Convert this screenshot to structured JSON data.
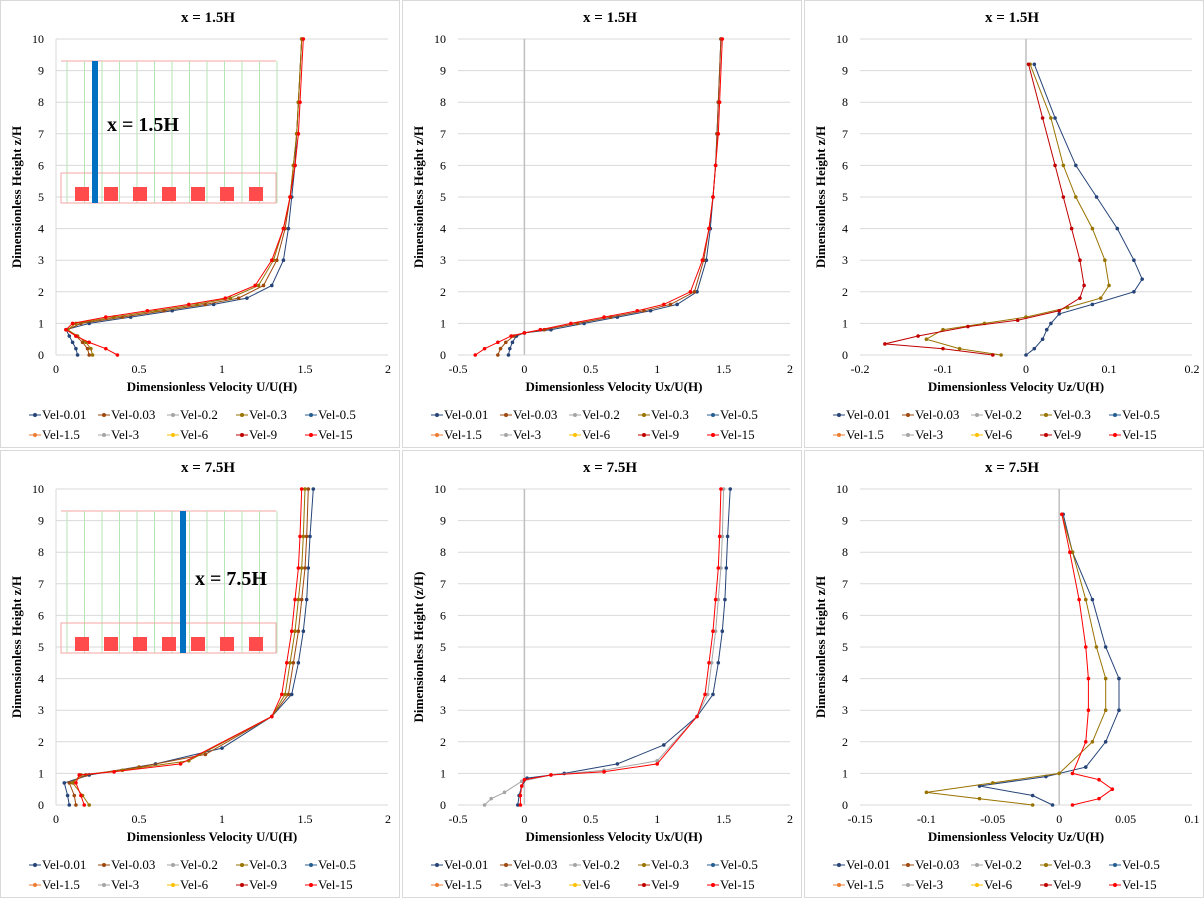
{
  "series_names": [
    "Vel-0.01",
    "Vel-0.03",
    "Vel-0.2",
    "Vel-0.3",
    "Vel-0.5",
    "Vel-1.5",
    "Vel-3",
    "Vel-6",
    "Vel-9",
    "Vel-15"
  ],
  "series_colors": [
    "#264478",
    "#9e480e",
    "#a5a5a5",
    "#997300",
    "#255e91",
    "#ed7d31",
    "#a5a5a5",
    "#ffc000",
    "#c00000",
    "#ff0000"
  ],
  "inset_colors": {
    "column": "#0070c0",
    "block": "#ff4b4b",
    "vline": "#b5e6b5",
    "box": "#f4a6a6"
  },
  "chart_data": [
    {
      "type": "line",
      "panel": "r0c0",
      "title": "x = 1.5H",
      "xlabel": "Dimensionless Velocity U/U(H)",
      "ylabel": "Dimensionless Height z/H",
      "xlim": [
        0,
        2
      ],
      "ylim": [
        0,
        10
      ],
      "xticks": [
        "0",
        "0.5",
        "1",
        "1.5",
        "2"
      ],
      "yticks": [
        "0",
        "1",
        "2",
        "3",
        "4",
        "5",
        "6",
        "7",
        "8",
        "9",
        "10"
      ],
      "inset_label": "x = 1.5H",
      "series": [
        {
          "name": "Vel-0.01",
          "x": [
            0.13,
            0.12,
            0.1,
            0.08,
            0.06,
            0.2,
            0.45,
            0.7,
            0.95,
            1.15,
            1.3,
            1.37,
            1.4,
            1.42,
            1.44,
            1.45,
            1.46,
            1.48
          ],
          "y": [
            0,
            0.2,
            0.4,
            0.6,
            0.8,
            1.0,
            1.2,
            1.4,
            1.6,
            1.8,
            2.2,
            3,
            4,
            5,
            6,
            7,
            8,
            10
          ]
        },
        {
          "name": "Vel-0.03",
          "x": [
            0.2,
            0.19,
            0.16,
            0.12,
            0.07,
            0.15,
            0.4,
            0.65,
            0.9,
            1.1,
            1.25,
            1.33,
            1.38,
            1.41,
            1.43,
            1.45,
            1.46,
            1.48
          ],
          "y": [
            0,
            0.2,
            0.4,
            0.6,
            0.8,
            1.0,
            1.2,
            1.4,
            1.6,
            1.8,
            2.2,
            3,
            4,
            5,
            6,
            7,
            8,
            10
          ]
        },
        {
          "name": "Vel-0.3",
          "x": [
            0.22,
            0.21,
            0.18,
            0.13,
            0.07,
            0.12,
            0.35,
            0.6,
            0.85,
            1.05,
            1.22,
            1.31,
            1.37,
            1.41,
            1.43,
            1.45,
            1.46,
            1.48
          ],
          "y": [
            0,
            0.2,
            0.4,
            0.6,
            0.8,
            1.0,
            1.2,
            1.4,
            1.6,
            1.8,
            2.2,
            3,
            4,
            5,
            6,
            7,
            8,
            10
          ]
        },
        {
          "name": "Vel-15",
          "x": [
            0.37,
            0.3,
            0.2,
            0.12,
            0.06,
            0.1,
            0.3,
            0.55,
            0.8,
            1.02,
            1.2,
            1.3,
            1.37,
            1.41,
            1.44,
            1.46,
            1.47,
            1.49
          ],
          "y": [
            0,
            0.2,
            0.4,
            0.6,
            0.8,
            1.0,
            1.2,
            1.4,
            1.6,
            1.8,
            2.2,
            3,
            4,
            5,
            6,
            7,
            8,
            10
          ]
        }
      ]
    },
    {
      "type": "line",
      "panel": "r0c1",
      "title": "x = 1.5H",
      "xlabel": "Dimensionless Velocity Ux/U(H)",
      "ylabel": "Dimensionless Height z/H",
      "xlim": [
        -0.5,
        2
      ],
      "ylim": [
        0,
        10
      ],
      "xticks": [
        "-0.5",
        "0",
        "0.5",
        "1",
        "1.5",
        "2"
      ],
      "yticks": [
        "0",
        "1",
        "2",
        "3",
        "4",
        "5",
        "6",
        "7",
        "8",
        "9",
        "10"
      ],
      "series": [
        {
          "name": "Vel-0.01",
          "x": [
            -0.12,
            -0.11,
            -0.09,
            -0.06,
            0.0,
            0.2,
            0.45,
            0.7,
            0.95,
            1.15,
            1.3,
            1.37,
            1.4,
            1.42,
            1.44,
            1.45,
            1.46,
            1.48
          ],
          "y": [
            0,
            0.2,
            0.4,
            0.6,
            0.7,
            0.8,
            1.0,
            1.2,
            1.4,
            1.6,
            2.0,
            3,
            4,
            5,
            6,
            7,
            8,
            10
          ]
        },
        {
          "name": "Vel-0.03",
          "x": [
            -0.2,
            -0.18,
            -0.14,
            -0.08,
            0.0,
            0.15,
            0.4,
            0.65,
            0.9,
            1.1,
            1.28,
            1.35,
            1.39,
            1.42,
            1.44,
            1.45,
            1.46,
            1.48
          ],
          "y": [
            0,
            0.2,
            0.4,
            0.6,
            0.7,
            0.8,
            1.0,
            1.2,
            1.4,
            1.6,
            2.0,
            3,
            4,
            5,
            6,
            7,
            8,
            10
          ]
        },
        {
          "name": "Vel-15",
          "x": [
            -0.37,
            -0.3,
            -0.2,
            -0.1,
            0.0,
            0.12,
            0.35,
            0.6,
            0.85,
            1.05,
            1.25,
            1.34,
            1.39,
            1.42,
            1.44,
            1.46,
            1.47,
            1.49
          ],
          "y": [
            0,
            0.2,
            0.4,
            0.6,
            0.7,
            0.8,
            1.0,
            1.2,
            1.4,
            1.6,
            2.0,
            3,
            4,
            5,
            6,
            7,
            8,
            10
          ]
        }
      ]
    },
    {
      "type": "line",
      "panel": "r0c2",
      "title": "x = 1.5H",
      "xlabel": "Dimensionless Velocity Uz/U(H)",
      "ylabel": "Dimensionless Height z/H",
      "xlim": [
        -0.2,
        0.2
      ],
      "ylim": [
        0,
        10
      ],
      "xticks": [
        "-0.2",
        "-0.1",
        "0",
        "0.1",
        "0.2"
      ],
      "yticks": [
        "0",
        "1",
        "2",
        "3",
        "4",
        "5",
        "6",
        "7",
        "8",
        "9",
        "10"
      ],
      "series": [
        {
          "name": "Vel-0.01",
          "x": [
            0.0,
            0.01,
            0.02,
            0.025,
            0.03,
            0.04,
            0.08,
            0.13,
            0.14,
            0.13,
            0.11,
            0.085,
            0.06,
            0.035,
            0.01
          ],
          "y": [
            0,
            0.2,
            0.5,
            0.8,
            1.0,
            1.3,
            1.6,
            2.0,
            2.4,
            3.0,
            4.0,
            5.0,
            6.0,
            7.5,
            9.2
          ]
        },
        {
          "name": "Vel-0.3",
          "x": [
            -0.03,
            -0.08,
            -0.12,
            -0.1,
            -0.05,
            0.0,
            0.05,
            0.09,
            0.1,
            0.095,
            0.08,
            0.06,
            0.045,
            0.03,
            0.005
          ],
          "y": [
            0,
            0.2,
            0.5,
            0.8,
            1.0,
            1.2,
            1.5,
            1.8,
            2.2,
            3.0,
            4.0,
            5.0,
            6.0,
            7.5,
            9.2
          ]
        },
        {
          "name": "Vel-9",
          "x": [
            -0.04,
            -0.1,
            -0.17,
            -0.13,
            -0.07,
            -0.01,
            0.04,
            0.065,
            0.07,
            0.065,
            0.055,
            0.045,
            0.035,
            0.02,
            0.003
          ],
          "y": [
            0,
            0.2,
            0.35,
            0.6,
            0.9,
            1.1,
            1.4,
            1.8,
            2.2,
            3.0,
            4.0,
            5.0,
            6.0,
            7.5,
            9.2
          ]
        }
      ]
    },
    {
      "type": "line",
      "panel": "r1c0",
      "title": "x = 7.5H",
      "xlabel": "Dimensionless Velocity U/U(H)",
      "ylabel": "Dimensionless Height z/H",
      "xlim": [
        0,
        2
      ],
      "ylim": [
        0,
        10
      ],
      "xticks": [
        "0",
        "0.5",
        "1",
        "1.5",
        "2"
      ],
      "yticks": [
        "0",
        "1",
        "2",
        "3",
        "4",
        "5",
        "6",
        "7",
        "8",
        "9",
        "10"
      ],
      "inset_label": "x = 7.5H",
      "series": [
        {
          "name": "Vel-0.01",
          "x": [
            0.08,
            0.07,
            0.05,
            0.2,
            0.6,
            1.0,
            1.3,
            1.42,
            1.46,
            1.49,
            1.51,
            1.52,
            1.53,
            1.55
          ],
          "y": [
            0,
            0.3,
            0.7,
            0.95,
            1.3,
            1.8,
            2.8,
            3.5,
            4.5,
            5.5,
            6.5,
            7.5,
            8.5,
            10
          ]
        },
        {
          "name": "Vel-0.03",
          "x": [
            0.12,
            0.11,
            0.08,
            0.18,
            0.5,
            0.9,
            1.3,
            1.4,
            1.43,
            1.46,
            1.48,
            1.5,
            1.51,
            1.52
          ],
          "y": [
            0,
            0.3,
            0.7,
            0.95,
            1.2,
            1.6,
            2.8,
            3.5,
            4.5,
            5.5,
            6.5,
            7.5,
            8.5,
            10
          ]
        },
        {
          "name": "Vel-0.3",
          "x": [
            0.2,
            0.16,
            0.1,
            0.15,
            0.4,
            0.8,
            1.3,
            1.38,
            1.41,
            1.44,
            1.46,
            1.48,
            1.49,
            1.5
          ],
          "y": [
            0,
            0.3,
            0.7,
            0.95,
            1.1,
            1.4,
            2.8,
            3.5,
            4.5,
            5.5,
            6.5,
            7.5,
            8.5,
            10
          ]
        },
        {
          "name": "Vel-15",
          "x": [
            0.17,
            0.15,
            0.12,
            0.14,
            0.35,
            0.75,
            1.3,
            1.36,
            1.39,
            1.42,
            1.44,
            1.46,
            1.47,
            1.48
          ],
          "y": [
            0,
            0.3,
            0.7,
            0.95,
            1.05,
            1.3,
            2.8,
            3.5,
            4.5,
            5.5,
            6.5,
            7.5,
            8.5,
            10
          ]
        }
      ]
    },
    {
      "type": "line",
      "panel": "r1c1",
      "title": "x = 7.5H",
      "xlabel": "Dimensionless Velocity Ux/U(H)",
      "ylabel": "Dimensionless Height (z/H)",
      "xlim": [
        -0.5,
        2
      ],
      "ylim": [
        0,
        10
      ],
      "xticks": [
        "-0.5",
        "0",
        "0.5",
        "1",
        "1.5",
        "2"
      ],
      "yticks": [
        "0",
        "1",
        "2",
        "3",
        "4",
        "5",
        "6",
        "7",
        "8",
        "9",
        "10"
      ],
      "series": [
        {
          "name": "Vel-0.01",
          "x": [
            -0.05,
            -0.04,
            -0.02,
            0.02,
            0.3,
            0.7,
            1.05,
            1.3,
            1.42,
            1.46,
            1.49,
            1.51,
            1.52,
            1.53,
            1.55
          ],
          "y": [
            0,
            0.3,
            0.6,
            0.85,
            1.0,
            1.3,
            1.9,
            2.8,
            3.5,
            4.5,
            5.5,
            6.5,
            7.5,
            8.5,
            10
          ]
        },
        {
          "name": "Vel-3",
          "x": [
            -0.3,
            -0.25,
            -0.15,
            -0.02,
            0.2,
            0.6,
            1.0,
            1.3,
            1.38,
            1.41,
            1.44,
            1.46,
            1.48,
            1.49,
            1.5
          ],
          "y": [
            0,
            0.2,
            0.4,
            0.75,
            0.95,
            1.1,
            1.4,
            2.8,
            3.5,
            4.5,
            5.5,
            6.5,
            7.5,
            8.5,
            10
          ]
        },
        {
          "name": "Vel-15",
          "x": [
            -0.03,
            -0.03,
            -0.02,
            0.0,
            0.2,
            0.6,
            1.0,
            1.3,
            1.36,
            1.39,
            1.42,
            1.44,
            1.46,
            1.47,
            1.48
          ],
          "y": [
            0,
            0.3,
            0.6,
            0.8,
            0.95,
            1.05,
            1.3,
            2.8,
            3.5,
            4.5,
            5.5,
            6.5,
            7.5,
            8.5,
            10
          ]
        }
      ]
    },
    {
      "type": "line",
      "panel": "r1c2",
      "title": "x = 7.5H",
      "xlabel": "Dimensionless Velocity Uz/U(H)",
      "ylabel": "Dimensionless Height z/H",
      "xlim": [
        -0.15,
        0.1
      ],
      "ylim": [
        0,
        10
      ],
      "xticks": [
        "-0.15",
        "-0.1",
        "-0.05",
        "0",
        "0.05",
        "0.1"
      ],
      "yticks": [
        "0",
        "1",
        "2",
        "3",
        "4",
        "5",
        "6",
        "7",
        "8",
        "9",
        "10"
      ],
      "series": [
        {
          "name": "Vel-0.01",
          "x": [
            -0.005,
            -0.02,
            -0.06,
            -0.01,
            0.02,
            0.035,
            0.045,
            0.045,
            0.035,
            0.025,
            0.01,
            0.003
          ],
          "y": [
            0,
            0.3,
            0.6,
            0.9,
            1.2,
            2.0,
            3.0,
            4.0,
            5.0,
            6.5,
            8.0,
            9.2
          ]
        },
        {
          "name": "Vel-0.3",
          "x": [
            -0.02,
            -0.06,
            -0.1,
            -0.05,
            0.0,
            0.025,
            0.035,
            0.035,
            0.028,
            0.02,
            0.01,
            0.002
          ],
          "y": [
            0,
            0.2,
            0.4,
            0.7,
            1.0,
            2.0,
            3.0,
            4.0,
            5.0,
            6.5,
            8.0,
            9.2
          ]
        },
        {
          "name": "Vel-15",
          "x": [
            0.01,
            0.03,
            0.04,
            0.03,
            0.01,
            0.02,
            0.022,
            0.022,
            0.02,
            0.015,
            0.008,
            0.002
          ],
          "y": [
            0,
            0.2,
            0.5,
            0.8,
            1.0,
            2.0,
            3.0,
            4.0,
            5.0,
            6.5,
            8.0,
            9.2
          ]
        }
      ]
    }
  ]
}
